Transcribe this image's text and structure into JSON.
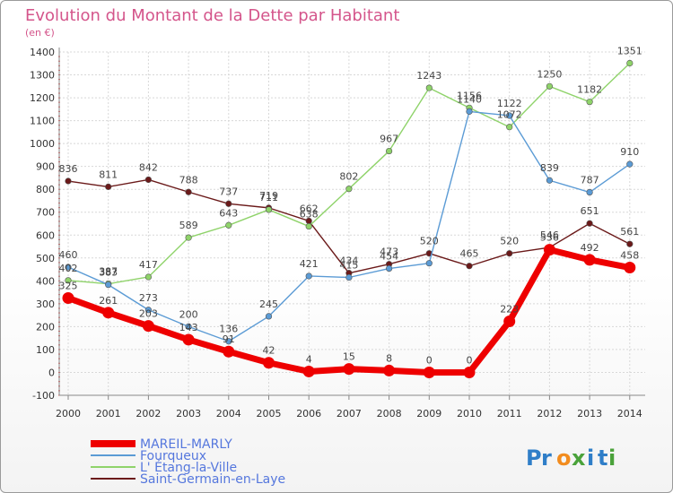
{
  "chart_data": {
    "type": "line",
    "title": "Evolution du Montant de la Dette par Habitant",
    "unit": "(en €)",
    "x": [
      "2000",
      "2001",
      "2002",
      "2003",
      "2004",
      "2005",
      "2006",
      "2007",
      "2008",
      "2009",
      "2010",
      "2011",
      "2012",
      "2013",
      "2014"
    ],
    "ylim": [
      -100,
      1400
    ],
    "yticks": [
      -100,
      0,
      100,
      200,
      300,
      400,
      500,
      600,
      700,
      800,
      900,
      1000,
      1100,
      1200,
      1300,
      1400
    ],
    "grid": true,
    "legend_position": "bottom-left",
    "series": [
      {
        "name": "MAREIL-MARLY",
        "color": "#ee0000",
        "values": [
          325,
          261,
          203,
          143,
          91,
          42,
          4,
          15,
          8,
          0,
          0,
          223,
          536,
          492,
          458
        ]
      },
      {
        "name": "Fourqueux",
        "color": "#5b9bd5",
        "values": [
          460,
          383,
          273,
          200,
          136,
          245,
          421,
          415,
          454,
          477,
          1140,
          1122,
          839,
          787,
          910
        ]
      },
      {
        "name": "L' Étang-la-Ville",
        "color": "#8fd36a",
        "values": [
          402,
          387,
          417,
          589,
          643,
          711,
          638,
          802,
          967,
          1243,
          1156,
          1072,
          1250,
          1182,
          1351
        ]
      },
      {
        "name": "Saint-Germain-en-Laye",
        "color": "#6b1a1a",
        "values": [
          836,
          811,
          842,
          788,
          737,
          719,
          662,
          434,
          473,
          520,
          465,
          520,
          546,
          651,
          561
        ]
      }
    ],
    "data_labels": [
      [
        "325",
        "261",
        "203",
        "143",
        "91",
        "42",
        "4",
        "15",
        "8",
        "0",
        "0",
        "223",
        "536",
        "492",
        "458"
      ],
      [
        "460",
        "383",
        "273",
        "200",
        "136",
        "245",
        "421",
        "415",
        "454",
        "",
        "1140",
        "1122",
        "839",
        "787",
        "910"
      ],
      [
        "402",
        "387",
        "417",
        "589",
        "643",
        "711",
        "638",
        "802",
        "967",
        "1243",
        "1156",
        "1072",
        "1250",
        "1182",
        "1351"
      ],
      [
        "836",
        "811",
        "842",
        "788",
        "737",
        "719",
        "662",
        "434",
        "473",
        "520",
        "465",
        "520",
        "546",
        "651",
        "561"
      ]
    ]
  },
  "brand": {
    "logo_text": "Proxiti"
  }
}
